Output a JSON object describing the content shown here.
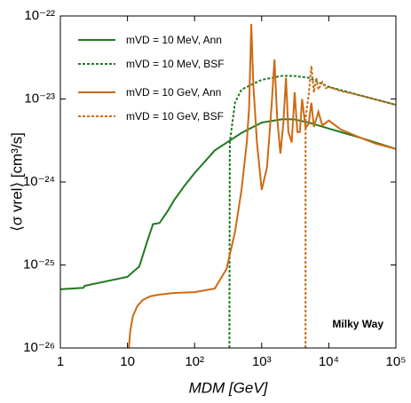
{
  "chart_data": {
    "type": "line",
    "xlabel": "MDM  [GeV]",
    "ylabel": "⟨σ vrel⟩  [cm³/s]",
    "annotation": "Milky Way",
    "log_x": true,
    "log_y": true,
    "xlim": [
      1,
      100000
    ],
    "ylim": [
      1e-26,
      1e-22
    ],
    "xticks": [
      1,
      10,
      {
        "value": 100,
        "label": "10²"
      },
      {
        "value": 1000,
        "label": "10³"
      },
      {
        "value": 10000,
        "label": "10⁴"
      },
      {
        "value": 100000,
        "label": "10⁵"
      }
    ],
    "yticks": [
      {
        "value": 1e-26,
        "label": "10⁻²⁶"
      },
      {
        "value": 1e-25,
        "label": "10⁻²⁵"
      },
      {
        "value": 1e-24,
        "label": "10⁻²⁴"
      },
      {
        "value": 1e-23,
        "label": "10⁻²³"
      },
      {
        "value": 1e-22,
        "label": "10⁻²²"
      }
    ],
    "legend": "upper left",
    "series": [
      {
        "name": "mVD = 10 MeV,  Ann",
        "color": "#1f7a1f",
        "dashed": false,
        "x": [
          1,
          2.2,
          2.3,
          10,
          15,
          20,
          24,
          30,
          40,
          50,
          70,
          100,
          200,
          500,
          1000,
          2000,
          3000,
          5000,
          10000,
          30000,
          100000
        ],
        "values": [
          5.1e-26,
          5.3e-26,
          5.6e-26,
          7.2e-26,
          9.6e-26,
          2e-25,
          3.1e-25,
          3.2e-25,
          4.5e-25,
          6.1e-25,
          8.9e-25,
          1.28e-24,
          2.4e-24,
          3.9e-24,
          5.2e-24,
          5.7e-24,
          5.7e-24,
          5.2e-24,
          4.4e-24,
          3.4e-24,
          2.5e-24
        ]
      },
      {
        "name": "mVD = 10 MeV,  BSF",
        "color": "#1f7a1f",
        "dashed": true,
        "x": [
          330,
          335,
          400,
          500,
          1000,
          2000,
          3000,
          5000,
          10000,
          30000,
          100000
        ],
        "values": [
          1e-26,
          3e-24,
          9e-24,
          1.3e-23,
          1.7e-23,
          1.9e-23,
          1.9e-23,
          1.8e-23,
          1.4e-23,
          1.1e-23,
          8.5e-24
        ]
      },
      {
        "name": "mVD = 10 GeV,  Ann",
        "color": "#cc6a14",
        "dashed": false,
        "x": [
          10.5,
          11,
          12,
          14,
          17,
          22,
          30,
          50,
          100,
          200,
          300,
          400,
          500,
          600,
          650,
          700,
          750,
          850,
          1000,
          1200,
          1400,
          1550,
          1700,
          1900,
          2100,
          2300,
          2500,
          2800,
          3100,
          3400,
          3700,
          4000,
          4500,
          5000,
          5500,
          6000,
          7000,
          8000,
          10000,
          15000,
          20000,
          30000,
          50000,
          100000
        ],
        "values": [
          1e-26,
          1.6e-26,
          2.4e-26,
          3.2e-26,
          3.8e-26,
          4.2e-26,
          4.4e-26,
          4.6e-26,
          4.7e-26,
          5.2e-26,
          9e-26,
          2.5e-25,
          8e-25,
          3e-24,
          8e-24,
          8e-23,
          1.5e-23,
          3e-24,
          8e-25,
          1.5e-24,
          8e-24,
          3e-23,
          6e-24,
          2.2e-24,
          5e-24,
          1.8e-23,
          4e-24,
          3e-24,
          1.2e-23,
          4e-24,
          4e-24,
          1e-23,
          4.5e-24,
          5e-24,
          9e-24,
          4.6e-24,
          7e-24,
          4.8e-24,
          5.5e-24,
          4.3e-24,
          3.9e-24,
          3.4e-24,
          2.9e-24,
          2.5e-24
        ]
      },
      {
        "name": "mVD = 10 GeV,  BSF",
        "color": "#cc6a14",
        "dashed": true,
        "x": [
          4500,
          4510,
          5000,
          5500,
          6000,
          6500,
          7000,
          8000,
          9000,
          10000,
          15000,
          30000,
          100000
        ],
        "values": [
          1e-26,
          6e-24,
          1.1e-23,
          2.5e-23,
          1.2e-23,
          1.8e-23,
          1.3e-23,
          1.6e-23,
          1.35e-23,
          1.4e-23,
          1.25e-23,
          1.1e-23,
          8.5e-24
        ]
      }
    ]
  }
}
